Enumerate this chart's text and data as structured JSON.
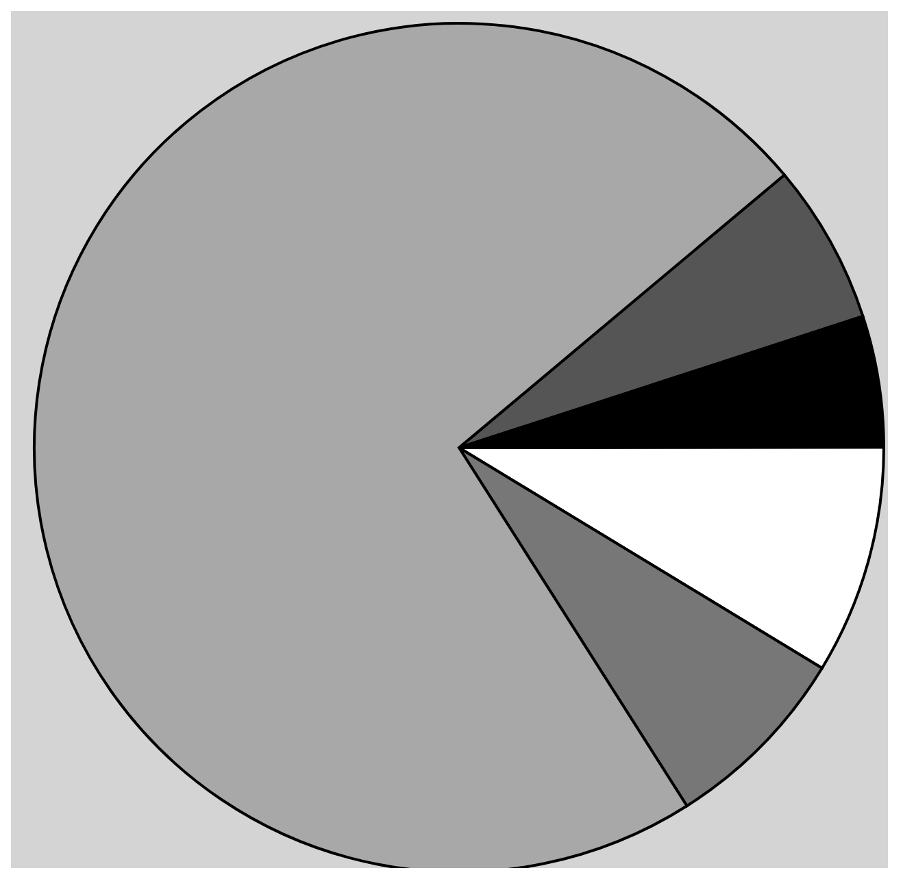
{
  "chart_data": {
    "type": "pie",
    "categories": [
      null,
      null,
      null,
      null,
      null
    ],
    "values": [
      6.1,
      5.0,
      8.7,
      7.3,
      72.9
    ],
    "colors": [
      "#555555",
      "#000000",
      "#ffffff",
      "#777777",
      "#a8a8a8"
    ]
  }
}
